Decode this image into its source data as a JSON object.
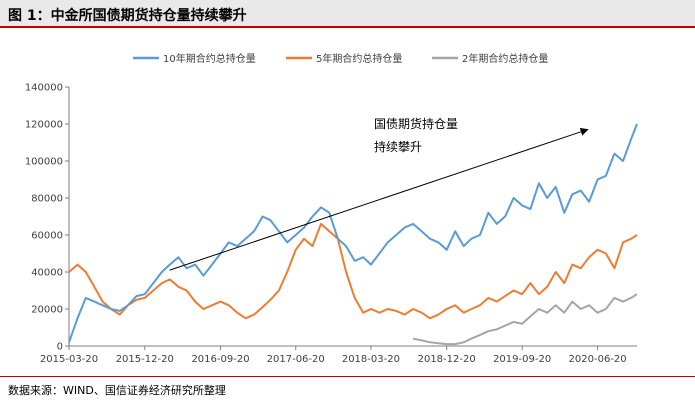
{
  "header": {
    "title": "图 1：中金所国债期货持仓量持续攀升"
  },
  "footer": {
    "source": "数据来源：WIND、国信证券经济研究所整理"
  },
  "chart_data": {
    "type": "line",
    "title": "",
    "xlabel": "",
    "ylabel": "",
    "ylim": [
      0,
      140000
    ],
    "yticks": [
      0,
      20000,
      40000,
      60000,
      80000,
      100000,
      120000,
      140000
    ],
    "ytick_labels": [
      "0",
      "20000",
      "40000",
      "60000",
      "80000",
      "100000",
      "120000",
      "140000"
    ],
    "xticks": [
      "2015-03-20",
      "2015-12-20",
      "2016-09-20",
      "2017-06-20",
      "2018-03-20",
      "2018-12-20",
      "2019-09-20",
      "2020-06-20"
    ],
    "xlim": [
      "2015-03-20",
      "2020-11-10"
    ],
    "grid": false,
    "legend_position": "top",
    "annotation": {
      "lines": [
        "国债期货持仓量",
        "持续攀升"
      ],
      "arrow_from": [
        "2015-12-20",
        41000
      ],
      "arrow_to": [
        "2020-06-20",
        117000
      ]
    },
    "series": [
      {
        "name": "10年期合约总持仓量",
        "color": "#5b9bd5",
        "x": [
          "2015-03-20",
          "2015-04-20",
          "2015-05-20",
          "2015-06-20",
          "2015-07-20",
          "2015-08-20",
          "2015-09-20",
          "2015-10-20",
          "2015-11-20",
          "2015-12-20",
          "2016-01-20",
          "2016-02-20",
          "2016-03-20",
          "2016-04-20",
          "2016-05-20",
          "2016-06-20",
          "2016-07-20",
          "2016-08-20",
          "2016-09-20",
          "2016-10-20",
          "2016-11-20",
          "2016-12-20",
          "2017-01-20",
          "2017-02-20",
          "2017-03-20",
          "2017-04-20",
          "2017-05-20",
          "2017-06-20",
          "2017-07-20",
          "2017-08-20",
          "2017-09-20",
          "2017-10-20",
          "2017-11-20",
          "2017-12-20",
          "2018-01-20",
          "2018-02-20",
          "2018-03-20",
          "2018-04-20",
          "2018-05-20",
          "2018-06-20",
          "2018-07-20",
          "2018-08-20",
          "2018-09-20",
          "2018-10-20",
          "2018-11-20",
          "2018-12-20",
          "2019-01-20",
          "2019-02-20",
          "2019-03-20",
          "2019-04-20",
          "2019-05-20",
          "2019-06-20",
          "2019-07-20",
          "2019-08-20",
          "2019-09-20",
          "2019-10-20",
          "2019-11-20",
          "2019-12-20",
          "2020-01-20",
          "2020-02-20",
          "2020-03-20",
          "2020-04-20",
          "2020-05-20",
          "2020-06-20",
          "2020-07-20",
          "2020-08-20",
          "2020-09-20",
          "2020-10-20",
          "2020-11-10"
        ],
        "y": [
          2000,
          15000,
          26000,
          24000,
          22000,
          20000,
          19000,
          22000,
          27000,
          28000,
          34000,
          40000,
          44000,
          48000,
          42000,
          44000,
          38000,
          44000,
          50000,
          56000,
          54000,
          58000,
          62000,
          70000,
          68000,
          62000,
          56000,
          60000,
          64000,
          70000,
          75000,
          72000,
          58000,
          54000,
          46000,
          48000,
          44000,
          50000,
          56000,
          60000,
          64000,
          66000,
          62000,
          58000,
          56000,
          52000,
          62000,
          54000,
          58000,
          60000,
          72000,
          66000,
          70000,
          80000,
          76000,
          74000,
          88000,
          80000,
          86000,
          72000,
          82000,
          84000,
          78000,
          90000,
          92000,
          104000,
          100000,
          112000,
          120000
        ]
      },
      {
        "name": "5年期合约总持仓量",
        "color": "#ed7d31",
        "x": [
          "2015-03-20",
          "2015-04-20",
          "2015-05-20",
          "2015-06-20",
          "2015-07-20",
          "2015-08-20",
          "2015-09-20",
          "2015-10-20",
          "2015-11-20",
          "2015-12-20",
          "2016-01-20",
          "2016-02-20",
          "2016-03-20",
          "2016-04-20",
          "2016-05-20",
          "2016-06-20",
          "2016-07-20",
          "2016-08-20",
          "2016-09-20",
          "2016-10-20",
          "2016-11-20",
          "2016-12-20",
          "2017-01-20",
          "2017-02-20",
          "2017-03-20",
          "2017-04-20",
          "2017-05-20",
          "2017-06-20",
          "2017-07-20",
          "2017-08-20",
          "2017-09-20",
          "2017-10-20",
          "2017-11-20",
          "2017-12-20",
          "2018-01-20",
          "2018-02-20",
          "2018-03-20",
          "2018-04-20",
          "2018-05-20",
          "2018-06-20",
          "2018-07-20",
          "2018-08-20",
          "2018-09-20",
          "2018-10-20",
          "2018-11-20",
          "2018-12-20",
          "2019-01-20",
          "2019-02-20",
          "2019-03-20",
          "2019-04-20",
          "2019-05-20",
          "2019-06-20",
          "2019-07-20",
          "2019-08-20",
          "2019-09-20",
          "2019-10-20",
          "2019-11-20",
          "2019-12-20",
          "2020-01-20",
          "2020-02-20",
          "2020-03-20",
          "2020-04-20",
          "2020-05-20",
          "2020-06-20",
          "2020-07-20",
          "2020-08-20",
          "2020-09-20",
          "2020-10-20",
          "2020-11-10"
        ],
        "y": [
          40000,
          44000,
          40000,
          32000,
          24000,
          20000,
          17000,
          22000,
          25000,
          26000,
          30000,
          34000,
          36000,
          32000,
          30000,
          24000,
          20000,
          22000,
          24000,
          22000,
          18000,
          15000,
          17000,
          21000,
          25000,
          30000,
          40000,
          52000,
          58000,
          54000,
          66000,
          62000,
          58000,
          40000,
          26000,
          18000,
          20000,
          18000,
          20000,
          19000,
          17000,
          20000,
          18000,
          15000,
          17000,
          20000,
          22000,
          18000,
          20000,
          22000,
          26000,
          24000,
          27000,
          30000,
          28000,
          34000,
          28000,
          32000,
          40000,
          34000,
          44000,
          42000,
          48000,
          52000,
          50000,
          42000,
          56000,
          58000,
          60000
        ]
      },
      {
        "name": "2年期合约总持仓量",
        "color": "#a5a5a5",
        "x": [
          "2018-08-20",
          "2018-09-20",
          "2018-10-20",
          "2018-11-20",
          "2018-12-20",
          "2019-01-20",
          "2019-02-20",
          "2019-03-20",
          "2019-04-20",
          "2019-05-20",
          "2019-06-20",
          "2019-07-20",
          "2019-08-20",
          "2019-09-20",
          "2019-10-20",
          "2019-11-20",
          "2019-12-20",
          "2020-01-20",
          "2020-02-20",
          "2020-03-20",
          "2020-04-20",
          "2020-05-20",
          "2020-06-20",
          "2020-07-20",
          "2020-08-20",
          "2020-09-20",
          "2020-10-20",
          "2020-11-10"
        ],
        "y": [
          4000,
          3000,
          2000,
          1500,
          1000,
          1000,
          2000,
          4000,
          6000,
          8000,
          9000,
          11000,
          13000,
          12000,
          16000,
          20000,
          18000,
          22000,
          18000,
          24000,
          20000,
          22000,
          18000,
          20000,
          26000,
          24000,
          26000,
          28000
        ]
      }
    ]
  }
}
